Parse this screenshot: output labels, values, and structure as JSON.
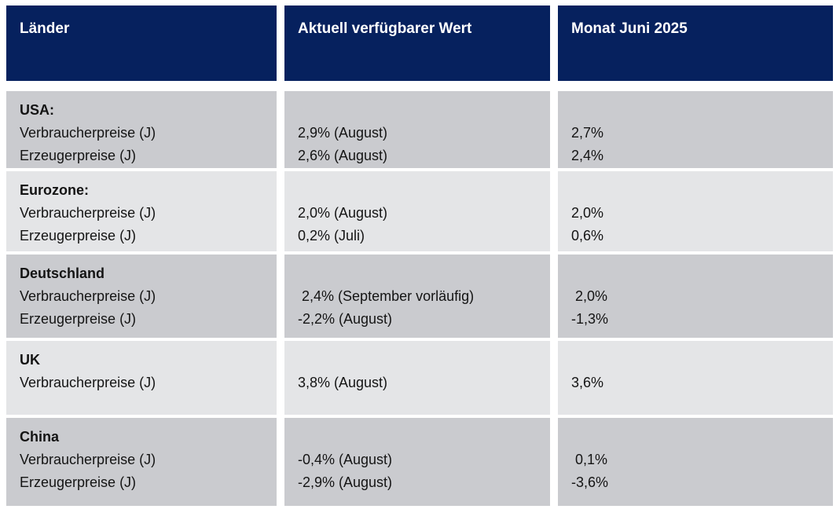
{
  "table": {
    "header": {
      "col1": "Länder",
      "col2": "Aktuell verfügbarer Wert",
      "col3": "Monat Juni 2025"
    },
    "rows": [
      {
        "country": "USA:",
        "labels": [
          "Verbraucherpreise (J)",
          "Erzeugerpreise (J)"
        ],
        "current": [
          "2,9% (August)",
          "2,6% (August)"
        ],
        "june": [
          "2,7%",
          "2,4%"
        ]
      },
      {
        "country": "Eurozone:",
        "labels": [
          "Verbraucherpreise (J)",
          "Erzeugerpreise (J)"
        ],
        "current": [
          "2,0% (August)",
          "0,2% (Juli)"
        ],
        "june": [
          "2,0%",
          "0,6%"
        ]
      },
      {
        "country": "Deutschland",
        "labels": [
          "Verbraucherpreise (J)",
          "Erzeugerpreise (J)"
        ],
        "current": [
          " 2,4% (September vorläufig)",
          "-2,2% (August)"
        ],
        "june": [
          " 2,0%",
          "-1,3%"
        ]
      },
      {
        "country": "UK",
        "labels": [
          "Verbraucherpreise (J)"
        ],
        "current": [
          "3,8% (August)"
        ],
        "june": [
          "3,6%"
        ]
      },
      {
        "country": "China",
        "labels": [
          "Verbraucherpreise (J)",
          "Erzeugerpreise (J)"
        ],
        "current": [
          "-0,4% (August)",
          "-2,9% (August)"
        ],
        "june": [
          " 0,1%",
          "-3,6%"
        ]
      }
    ]
  },
  "colors": {
    "header_bg": "#06215e",
    "row_dark": "#cacbcf",
    "row_light": "#e4e5e7"
  }
}
